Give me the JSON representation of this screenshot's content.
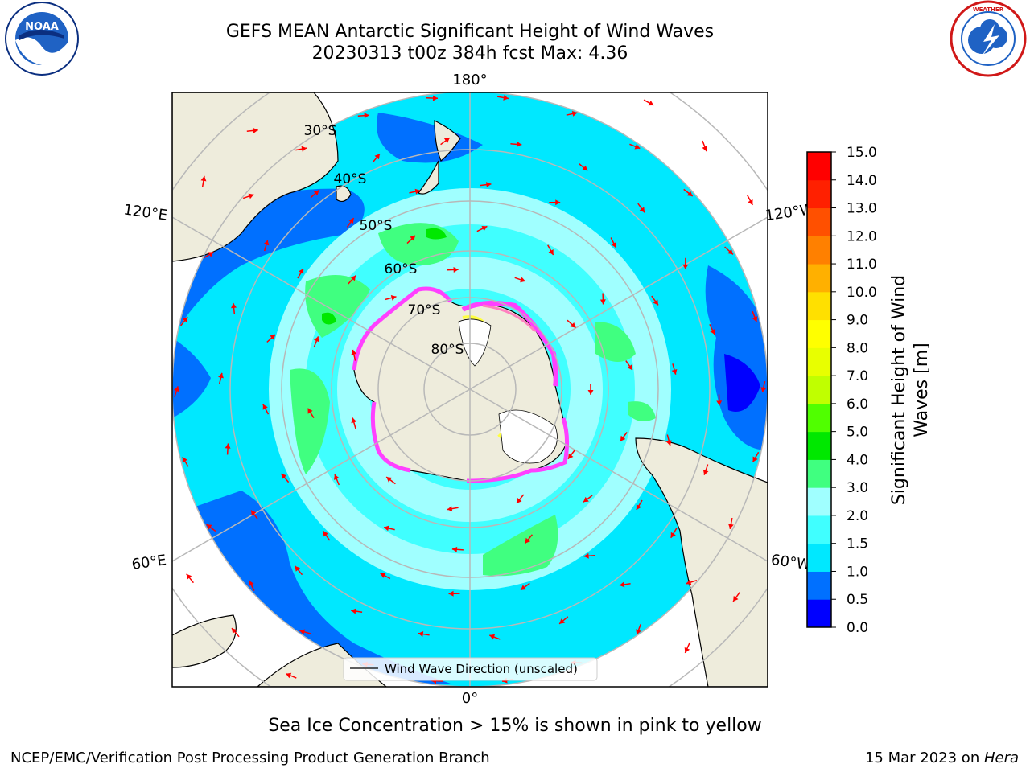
{
  "header": {
    "title_line1": "GEFS MEAN Antarctic Significant Height of Wind Waves",
    "title_line2": "20230313 t00z 384h fcst   Max: 4.36"
  },
  "logos": {
    "left": "noaa-logo",
    "left_text": "NOAA",
    "left_ring": "NATIONAL OCEANIC AND ATMOSPHERIC ADMINISTRATION · U.S. DEPARTMENT OF COMMERCE",
    "right": "national-weather-service-logo",
    "right_ring": "NATIONAL WEATHER SERVICE"
  },
  "map": {
    "projection": "south-polar-stereographic",
    "longitude_labels": [
      "180°",
      "120°E",
      "120°W",
      "60°E",
      "60°W",
      "0°"
    ],
    "latitude_labels": [
      "30°S",
      "40°S",
      "50°S",
      "60°S",
      "70°S",
      "80°S"
    ],
    "legend_label": "Wind Wave Direction (unscaled)",
    "arrow_color": "#ff0000",
    "land_color": "#eeecdc",
    "ice_colors": [
      "#ff40ff",
      "#ff80c0",
      "#ffff40"
    ]
  },
  "colorbar": {
    "label_line1": "Significant Height of Wind",
    "label_line2": "Waves [m]",
    "ticks": [
      "0.0",
      "0.5",
      "1.0",
      "1.5",
      "2.0",
      "3.0",
      "4.0",
      "5.0",
      "6.0",
      "7.0",
      "8.0",
      "9.0",
      "10.0",
      "11.0",
      "12.0",
      "13.0",
      "14.0",
      "15.0"
    ],
    "colors": [
      "#0000ff",
      "#0070ff",
      "#00e8ff",
      "#40ffff",
      "#a0ffff",
      "#40ff80",
      "#00e800",
      "#50ff00",
      "#c0ff00",
      "#e8ff00",
      "#ffff00",
      "#ffe000",
      "#ffb000",
      "#ff8000",
      "#ff5000",
      "#ff2000",
      "#ff0000"
    ]
  },
  "footer": {
    "note": "Sea Ice Concentration > 15% is shown in pink to yellow",
    "left": "NCEP/EMC/Verification Post Processing Product Generation Branch",
    "right_date": "15 Mar 2023 on ",
    "right_host": "Hera"
  }
}
